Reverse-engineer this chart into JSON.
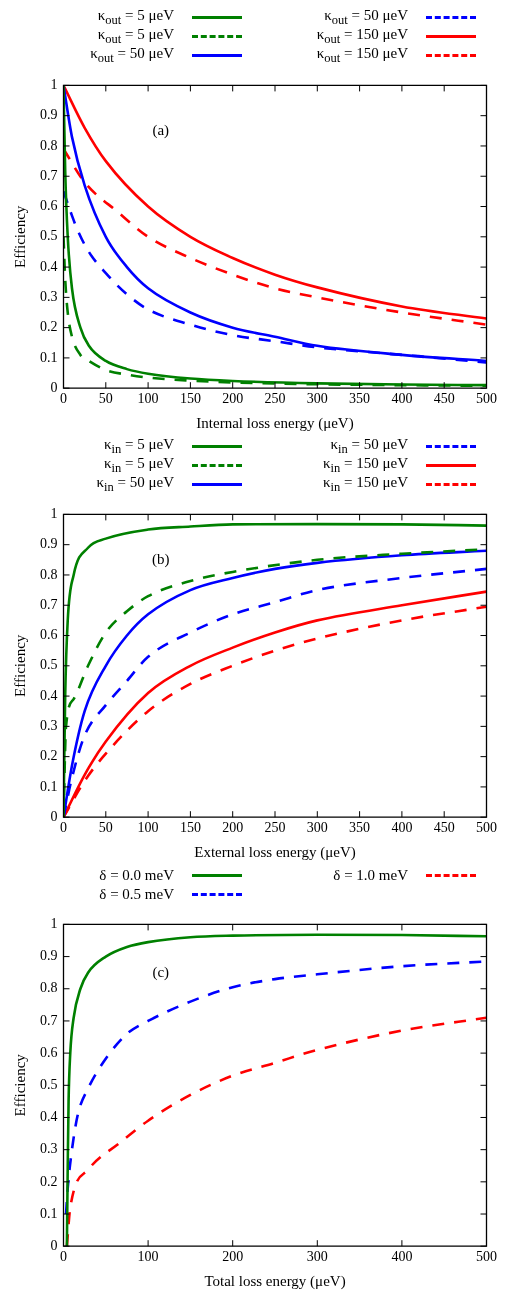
{
  "chart_data": [
    {
      "type": "line",
      "xlabel": "Internal loss energy (μeV)",
      "ylabel": "Efficiency",
      "annotations": [
        "(a)"
      ],
      "legend": "top",
      "grid": false,
      "marker": "none",
      "xlim": [
        0,
        500
      ],
      "ylim": [
        0,
        1
      ],
      "xticks": [
        0,
        50,
        100,
        150,
        200,
        250,
        300,
        350,
        400,
        450,
        500
      ],
      "yticks": [
        0,
        0.1,
        0.2,
        0.3,
        0.4,
        0.5,
        0.6,
        0.7,
        0.8,
        0.9,
        1
      ],
      "series": [
        {
          "name": "κ$_{out}$ = 5 μeV",
          "color": "#008000",
          "line_style": "solid",
          "x": [
            0,
            2,
            5,
            10,
            20,
            30,
            50,
            75,
            100,
            150,
            200,
            300,
            400,
            500
          ],
          "values": [
            1,
            0.72,
            0.5,
            0.33,
            0.2,
            0.14,
            0.09,
            0.063,
            0.048,
            0.032,
            0.024,
            0.016,
            0.012,
            0.01
          ]
        },
        {
          "name": "κ$_{out}$ = 5 μeV",
          "color": "#008000",
          "line_style": "dashed",
          "x": [
            0,
            2,
            5,
            10,
            20,
            30,
            50,
            75,
            100,
            150,
            200,
            300,
            400,
            500
          ],
          "values": [
            0.5,
            0.36,
            0.25,
            0.17,
            0.11,
            0.09,
            0.06,
            0.045,
            0.035,
            0.025,
            0.019,
            0.013,
            0.01,
            0.008
          ]
        },
        {
          "name": "κ$_{out}$ = 50 μeV",
          "color": "#0000ff",
          "line_style": "solid",
          "x": [
            0,
            10,
            25,
            50,
            75,
            100,
            150,
            200,
            250,
            300,
            400,
            500
          ],
          "values": [
            1,
            0.83,
            0.67,
            0.5,
            0.4,
            0.33,
            0.25,
            0.2,
            0.17,
            0.14,
            0.11,
            0.09
          ]
        },
        {
          "name": "κ$_{out}$ = 50 μeV",
          "color": "#0000ff",
          "line_style": "dashed",
          "x": [
            0,
            10,
            17,
            30,
            50,
            75,
            100,
            150,
            200,
            250,
            300,
            400,
            500
          ],
          "values": [
            0.65,
            0.57,
            0.52,
            0.45,
            0.38,
            0.31,
            0.26,
            0.21,
            0.175,
            0.155,
            0.135,
            0.11,
            0.085
          ]
        },
        {
          "name": "κ$_{out}$ = 150 μeV",
          "color": "#ff0000",
          "line_style": "solid",
          "x": [
            0,
            25,
            50,
            100,
            150,
            200,
            250,
            300,
            400,
            500
          ],
          "values": [
            1,
            0.86,
            0.75,
            0.6,
            0.5,
            0.43,
            0.375,
            0.333,
            0.27,
            0.23
          ]
        },
        {
          "name": "κ$_{out}$ = 150 μeV",
          "color": "#ff0000",
          "line_style": "dashed",
          "x": [
            0,
            25,
            65,
            100,
            150,
            200,
            250,
            300,
            400,
            500
          ],
          "values": [
            0.79,
            0.68,
            0.58,
            0.5,
            0.43,
            0.375,
            0.33,
            0.3,
            0.25,
            0.21
          ]
        }
      ]
    },
    {
      "type": "line",
      "xlabel": "External loss energy (μeV)",
      "ylabel": "Efficiency",
      "annotations": [
        "(b)"
      ],
      "legend": "top",
      "grid": false,
      "marker": "none",
      "xlim": [
        0,
        500
      ],
      "ylim": [
        0,
        1
      ],
      "xticks": [
        0,
        50,
        100,
        150,
        200,
        250,
        300,
        350,
        400,
        450,
        500
      ],
      "yticks": [
        0,
        0.1,
        0.2,
        0.3,
        0.4,
        0.5,
        0.6,
        0.7,
        0.8,
        0.9,
        1
      ],
      "series": [
        {
          "name": "κ$_{in}$ = 5 μeV",
          "color": "#008000",
          "line_style": "solid",
          "x": [
            0,
            2,
            5,
            12,
            29,
            50,
            100,
            150,
            200,
            300,
            400,
            500
          ],
          "values": [
            0,
            0.4,
            0.65,
            0.8,
            0.89,
            0.92,
            0.95,
            0.96,
            0.967,
            0.968,
            0.967,
            0.963
          ]
        },
        {
          "name": "κ$_{in}$ = 5 μeV",
          "color": "#008000",
          "line_style": "dashed",
          "x": [
            0,
            3,
            12,
            29,
            50,
            75,
            100,
            150,
            200,
            300,
            400,
            500
          ],
          "values": [
            0,
            0.3,
            0.39,
            0.5,
            0.61,
            0.68,
            0.73,
            0.78,
            0.81,
            0.85,
            0.87,
            0.885
          ]
        },
        {
          "name": "κ$_{in}$ = 50 μeV",
          "color": "#0000ff",
          "line_style": "solid",
          "x": [
            0,
            10,
            25,
            50,
            75,
            100,
            150,
            200,
            250,
            300,
            400,
            500
          ],
          "values": [
            0,
            0.17,
            0.35,
            0.5,
            0.6,
            0.67,
            0.75,
            0.79,
            0.82,
            0.84,
            0.865,
            0.88
          ]
        },
        {
          "name": "κ$_{in}$ = 50 μeV",
          "color": "#0000ff",
          "line_style": "dashed",
          "x": [
            0,
            10,
            25,
            50,
            75,
            100,
            150,
            200,
            250,
            300,
            400,
            500
          ],
          "values": [
            0,
            0.13,
            0.27,
            0.37,
            0.45,
            0.53,
            0.61,
            0.67,
            0.71,
            0.75,
            0.79,
            0.82
          ]
        },
        {
          "name": "κ$_{in}$ = 150 μeV",
          "color": "#ff0000",
          "line_style": "solid",
          "x": [
            0,
            25,
            50,
            100,
            150,
            200,
            250,
            300,
            400,
            500
          ],
          "values": [
            0,
            0.14,
            0.25,
            0.41,
            0.5,
            0.56,
            0.61,
            0.65,
            0.7,
            0.745
          ]
        },
        {
          "name": "κ$_{in}$ = 150 μeV",
          "color": "#ff0000",
          "line_style": "dashed",
          "x": [
            0,
            25,
            50,
            100,
            150,
            200,
            250,
            300,
            400,
            500
          ],
          "values": [
            0,
            0.12,
            0.21,
            0.35,
            0.44,
            0.5,
            0.55,
            0.59,
            0.65,
            0.695
          ]
        }
      ]
    },
    {
      "type": "line",
      "xlabel": "Total loss energy (μeV)",
      "ylabel": "Efficiency",
      "annotations": [
        "(c)"
      ],
      "legend": "top",
      "grid": false,
      "marker": "none",
      "xlim": [
        0,
        500
      ],
      "ylim": [
        0,
        1
      ],
      "xticks": [
        0,
        100,
        200,
        300,
        400,
        500
      ],
      "yticks": [
        0,
        0.1,
        0.2,
        0.3,
        0.4,
        0.5,
        0.6,
        0.7,
        0.8,
        0.9,
        1
      ],
      "series": [
        {
          "name": "δ = 0.0 meV",
          "color": "#008000",
          "line_style": "solid",
          "x": [
            4,
            5,
            6,
            8,
            12,
            20,
            29,
            50,
            75,
            100,
            150,
            200,
            300,
            400,
            500
          ],
          "values": [
            0,
            0.25,
            0.45,
            0.6,
            0.71,
            0.8,
            0.85,
            0.9,
            0.93,
            0.945,
            0.96,
            0.965,
            0.968,
            0.967,
            0.963
          ]
        },
        {
          "name": "δ = 0.5 meV",
          "color": "#0000ff",
          "line_style": "dashed",
          "x": [
            3,
            5,
            10,
            17,
            29,
            52,
            75,
            100,
            150,
            200,
            250,
            300,
            400,
            500
          ],
          "values": [
            0.1,
            0.18,
            0.3,
            0.41,
            0.49,
            0.59,
            0.66,
            0.7,
            0.76,
            0.805,
            0.83,
            0.845,
            0.87,
            0.885
          ]
        },
        {
          "name": "δ = 1.0 meV",
          "color": "#ff0000",
          "line_style": "dashed",
          "x": [
            4,
            8,
            30,
            66,
            100,
            150,
            200,
            250,
            300,
            400,
            500
          ],
          "values": [
            0,
            0.12,
            0.24,
            0.32,
            0.39,
            0.47,
            0.53,
            0.57,
            0.61,
            0.67,
            0.71
          ]
        }
      ]
    }
  ]
}
